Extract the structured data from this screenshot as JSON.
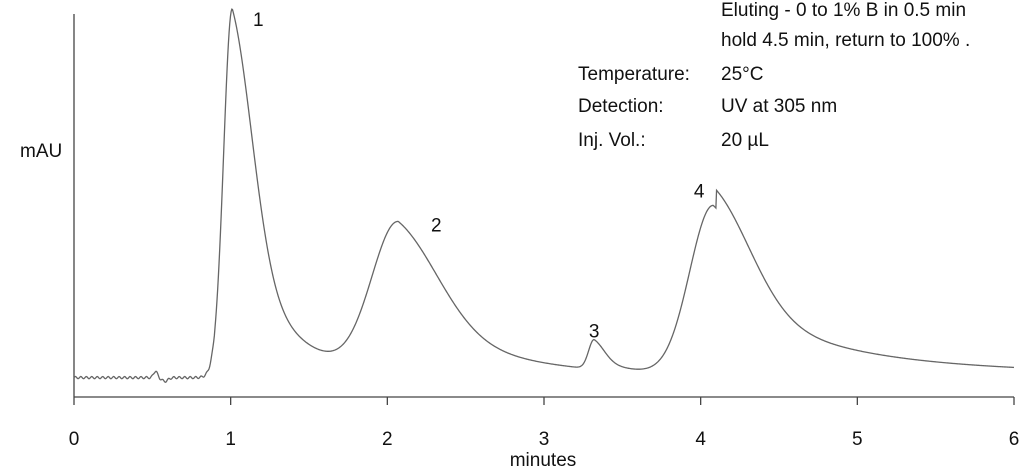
{
  "chart_data": {
    "type": "line",
    "title": "",
    "xlabel": "minutes",
    "ylabel": "mAU",
    "xlim": [
      0,
      6
    ],
    "x_ticks": [
      0,
      1,
      2,
      3,
      4,
      5,
      6
    ],
    "y_ticks": [],
    "grid": false,
    "legend": "none",
    "series": [
      {
        "color": "#666666",
        "baseline": 0.02,
        "peaks": [
          {
            "label": "1",
            "rt": 1.01,
            "height": 1.0
          },
          {
            "label": "2",
            "rt": 2.07,
            "height": 0.41
          },
          {
            "label": "3",
            "rt": 3.32,
            "height": 0.08
          },
          {
            "label": "4",
            "rt": 4.08,
            "height": 0.46
          }
        ]
      }
    ],
    "annotations": [
      {
        "name": "Eluting",
        "text": "Eluting - 0 to 1% B in 0.5 min"
      },
      {
        "name": "Eluting-2",
        "text": "hold 4.5 min, return to 100% ."
      },
      {
        "name": "Temperature:",
        "text": "25°C"
      },
      {
        "name": "Detection:",
        "text": "UV at 305 nm"
      },
      {
        "name": "Inj. Vol.:",
        "text": "20 µL"
      }
    ]
  }
}
